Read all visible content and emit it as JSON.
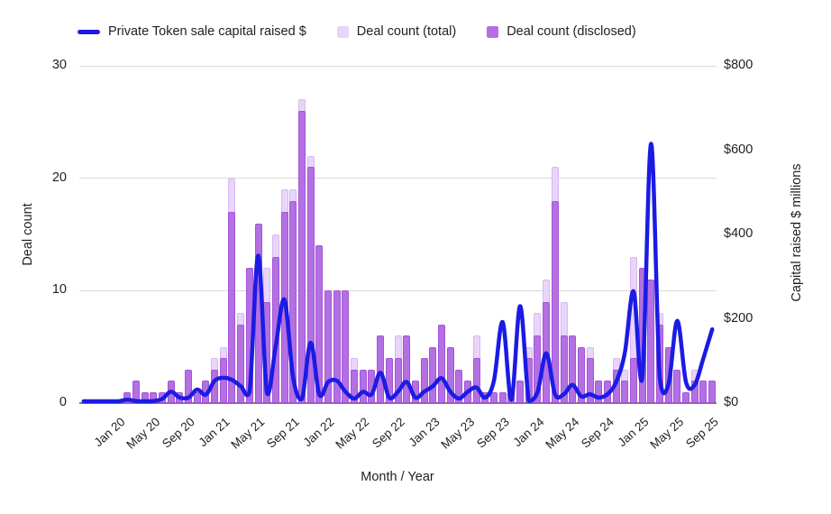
{
  "legend": {
    "items": [
      {
        "label": "Private Token sale capital raised $",
        "swatch": "line",
        "color": "#1b1be4"
      },
      {
        "label": "Deal count (total)",
        "swatch": "square",
        "color": "#e9d5f9"
      },
      {
        "label": "Deal count (disclosed)",
        "swatch": "square",
        "color": "#b470e2"
      }
    ]
  },
  "chart_data": {
    "type": "combo-bar-line",
    "months": [
      "Sep 19",
      "Oct 19",
      "Nov 19",
      "Dec 19",
      "Jan 20",
      "Feb 20",
      "Mar 20",
      "Apr 20",
      "May 20",
      "Jun 20",
      "Jul 20",
      "Aug 20",
      "Sep 20",
      "Oct 20",
      "Nov 20",
      "Dec 20",
      "Jan 21",
      "Feb 21",
      "Mar 21",
      "Apr 21",
      "May 21",
      "Jun 21",
      "Jul 21",
      "Aug 21",
      "Sep 21",
      "Oct 21",
      "Nov 21",
      "Dec 21",
      "Jan 22",
      "Feb 22",
      "Mar 22",
      "Apr 22",
      "May 22",
      "Jun 22",
      "Jul 22",
      "Aug 22",
      "Sep 22",
      "Oct 22",
      "Nov 22",
      "Dec 22",
      "Jan 23",
      "Feb 23",
      "Mar 23",
      "Apr 23",
      "May 23",
      "Jun 23",
      "Jul 23",
      "Aug 23",
      "Sep 23",
      "Oct 23",
      "Nov 23",
      "Dec 23",
      "Jan 24",
      "Feb 24",
      "Mar 24",
      "Apr 24",
      "May 24",
      "Jun 24",
      "Jul 24",
      "Aug 24",
      "Sep 24",
      "Oct 24",
      "Nov 24",
      "Dec 24",
      "Jan 25",
      "Feb 25",
      "Mar 25",
      "Apr 25",
      "May 25",
      "Jun 25",
      "Jul 25",
      "Aug 25",
      "Sep 25"
    ],
    "series": [
      {
        "name": "Deal count (total)",
        "type": "bar",
        "axis": "left",
        "color": "#e9d5f9",
        "values": [
          0,
          0,
          0,
          0,
          0,
          1,
          2,
          1,
          1,
          1,
          2,
          1,
          3,
          1,
          2,
          4,
          5,
          20,
          8,
          12,
          16,
          12,
          15,
          19,
          19,
          27,
          22,
          14,
          10,
          10,
          10,
          4,
          3,
          3,
          6,
          4,
          6,
          6,
          2,
          4,
          5,
          7,
          5,
          3,
          2,
          6,
          1,
          1,
          1,
          1,
          2,
          5,
          8,
          11,
          21,
          9,
          6,
          5,
          5,
          2,
          2,
          4,
          3,
          13,
          12,
          11,
          8,
          5,
          3,
          1,
          3,
          2,
          2
        ]
      },
      {
        "name": "Deal count (disclosed)",
        "type": "bar",
        "axis": "left",
        "color": "#b470e2",
        "values": [
          0,
          0,
          0,
          0,
          0,
          1,
          2,
          1,
          1,
          1,
          2,
          1,
          3,
          1,
          2,
          3,
          4,
          17,
          7,
          12,
          16,
          9,
          13,
          17,
          18,
          26,
          21,
          14,
          10,
          10,
          10,
          3,
          3,
          3,
          6,
          4,
          4,
          6,
          2,
          4,
          5,
          7,
          5,
          3,
          2,
          4,
          1,
          1,
          1,
          1,
          2,
          4,
          6,
          9,
          18,
          6,
          6,
          5,
          4,
          2,
          2,
          3,
          2,
          4,
          12,
          11,
          7,
          5,
          3,
          1,
          2,
          2,
          2
        ]
      },
      {
        "name": "Private Token sale capital raised $",
        "type": "line",
        "axis": "right",
        "color": "#1b1be4",
        "values_millions": [
          0,
          0,
          0,
          0,
          0,
          8,
          5,
          3,
          5,
          10,
          27,
          13,
          13,
          32,
          20,
          53,
          60,
          55,
          40,
          27,
          350,
          24,
          135,
          245,
          60,
          10,
          143,
          20,
          50,
          53,
          27,
          11,
          27,
          21,
          72,
          13,
          27,
          50,
          13,
          27,
          40,
          59,
          27,
          11,
          27,
          37,
          13,
          53,
          192,
          8,
          230,
          5,
          27,
          118,
          21,
          21,
          43,
          16,
          21,
          13,
          21,
          50,
          120,
          265,
          61,
          615,
          60,
          45,
          195,
          50,
          43,
          107,
          175
        ]
      }
    ],
    "left_axis": {
      "title": "Deal count",
      "min": 0,
      "max": 30,
      "ticks": [
        0,
        10,
        20,
        30
      ]
    },
    "right_axis": {
      "title": "Capital raised $ millions",
      "min": 0,
      "max": 800,
      "tick_labels": [
        "$0",
        "$200",
        "$400",
        "$600",
        "$800"
      ],
      "tick_values": [
        0,
        200,
        400,
        600,
        800
      ]
    },
    "x_axis": {
      "title": "Month / Year",
      "label_start_index": 4,
      "label_step": 4,
      "visible_labels": [
        "Jan 20",
        "May 20",
        "Sep 20",
        "Jan 21",
        "May 21",
        "Sep 21",
        "Jan 22",
        "May 22",
        "Sep 22",
        "Jan 23",
        "May 23",
        "Sep 23",
        "Jan 24",
        "May 24",
        "Sep 24",
        "Jan 25",
        "May 25",
        "Sep 25"
      ]
    },
    "grid": "horizontal",
    "legend_position": "top"
  }
}
